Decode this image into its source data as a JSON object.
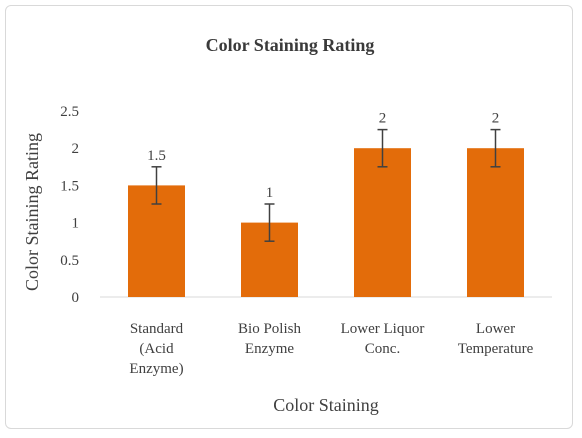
{
  "chart_data": {
    "type": "bar",
    "title": "Color Staining Rating",
    "xlabel": "Color Staining",
    "ylabel": "Color Staining Rating",
    "categories": [
      [
        "Standard",
        "(Acid",
        "Enzyme)"
      ],
      [
        "Bio Polish",
        "Enzyme"
      ],
      [
        "Lower Liquor",
        "Conc."
      ],
      [
        "Lower",
        "Temperature"
      ]
    ],
    "values": [
      1.5,
      1,
      2,
      2
    ],
    "error": [
      0.25,
      0.25,
      0.25,
      0.25
    ],
    "data_labels": [
      "1.5",
      "1",
      "2",
      "2"
    ],
    "ylim": [
      0,
      2.5
    ],
    "yticks": [
      "0",
      "0.5",
      "1",
      "1.5",
      "2",
      "2.5"
    ],
    "bar_color": "#e36c0a",
    "grid": false,
    "legend": "none"
  }
}
